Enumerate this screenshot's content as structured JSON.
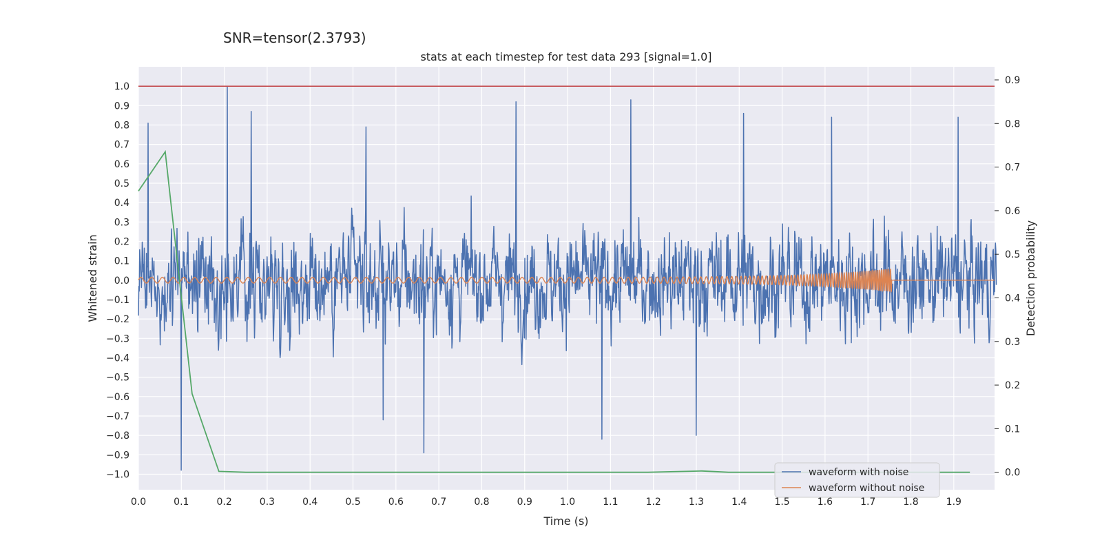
{
  "chart_data": {
    "type": "line",
    "suptitle": "SNR=tensor(2.3793)",
    "title": "stats at each timestep for test data 293 [signal=1.0]",
    "xlabel": "Time (s)",
    "ylabel": "Whitened strain",
    "ylabel_right": "Detection probability",
    "xlim": [
      0.0,
      1.995
    ],
    "ylim": [
      -1.08,
      1.1
    ],
    "ylim_right": [
      -0.04,
      0.93
    ],
    "x_ticks": [
      "0.0",
      "0.1",
      "0.2",
      "0.3",
      "0.4",
      "0.5",
      "0.6",
      "0.7",
      "0.8",
      "0.9",
      "1.0",
      "1.1",
      "1.2",
      "1.3",
      "1.4",
      "1.5",
      "1.6",
      "1.7",
      "1.8",
      "1.9"
    ],
    "y_ticks": [
      "1.0",
      "0.9",
      "0.8",
      "0.7",
      "0.6",
      "0.5",
      "0.4",
      "0.3",
      "0.2",
      "0.1",
      "0.0",
      "−0.1",
      "−0.2",
      "−0.3",
      "−0.4",
      "−0.5",
      "−0.6",
      "−0.7",
      "−0.8",
      "−0.9",
      "−1.0"
    ],
    "y_ticks_right": [
      "0.9",
      "0.8",
      "0.7",
      "0.6",
      "0.5",
      "0.4",
      "0.3",
      "0.2",
      "0.1",
      "0.0"
    ],
    "threshold": {
      "y": 1.0,
      "color": "#c44e52"
    },
    "series": [
      {
        "name": "waveform with noise",
        "color": "#4c72b0",
        "axis": "left",
        "description": "noisy whitened strain, 2048 samples over 0–2 s",
        "n_samples": 2048,
        "x_start": 0.0,
        "x_end": 1.999,
        "peaks": [
          {
            "x": 0.022,
            "y": 0.81
          },
          {
            "x": 0.207,
            "y": 1.0
          },
          {
            "x": 0.263,
            "y": 0.87
          },
          {
            "x": 0.53,
            "y": 0.79
          },
          {
            "x": 0.88,
            "y": 0.92
          },
          {
            "x": 1.147,
            "y": 0.93
          },
          {
            "x": 1.41,
            "y": 0.86
          },
          {
            "x": 1.615,
            "y": 0.84
          },
          {
            "x": 1.91,
            "y": 0.84
          },
          {
            "x": 0.1,
            "y": -0.98
          },
          {
            "x": 0.665,
            "y": -0.89
          },
          {
            "x": 0.57,
            "y": -0.72
          },
          {
            "x": 1.08,
            "y": -0.82
          },
          {
            "x": 1.3,
            "y": -0.8
          }
        ]
      },
      {
        "name": "waveform without noise",
        "color": "#dd8452",
        "axis": "left",
        "description": "clean chirp growing in amplitude and frequency until merger at ~1.75 s, then zero",
        "merger_time": 1.755,
        "start_amplitude": 0.015,
        "peak_amplitude": 0.06,
        "start_cycles_per_s": 40,
        "end_cycles_per_s": 250
      },
      {
        "name": "detection probability",
        "color": "#55a868",
        "axis": "right",
        "x": [
          0.0,
          0.0625,
          0.125,
          0.1875,
          0.25,
          0.5,
          0.75,
          1.0,
          1.1875,
          1.3125,
          1.375,
          1.5,
          1.75,
          1.9375
        ],
        "values": [
          0.645,
          0.735,
          0.18,
          0.002,
          0.0,
          0.0,
          0.0,
          0.0,
          0.0,
          0.003,
          0.0,
          0.0,
          0.0,
          0.0
        ]
      }
    ],
    "legend": {
      "position": "lower-right",
      "entries": [
        "waveform with noise",
        "waveform without noise"
      ]
    },
    "grid": true,
    "background": "#eaeaf2"
  }
}
